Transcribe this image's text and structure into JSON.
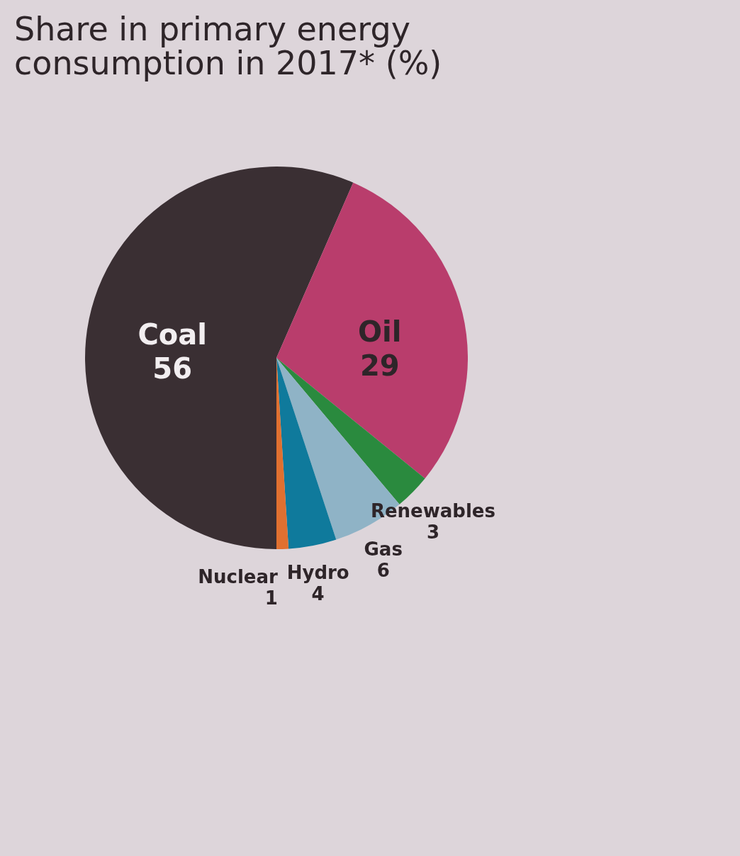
{
  "chart_data": {
    "type": "pie",
    "title": "Share in primary energy consumption in 2017* (%)",
    "categories": [
      "Coal",
      "Oil",
      "Renewables",
      "Gas",
      "Hydro",
      "Nuclear"
    ],
    "values": [
      56,
      29,
      3,
      6,
      4,
      1
    ],
    "colors": [
      "#3a2f33",
      "#b93d6c",
      "#2a8a3e",
      "#8fb3c6",
      "#0f7a9c",
      "#e07030"
    ],
    "data_labels": true
  }
}
